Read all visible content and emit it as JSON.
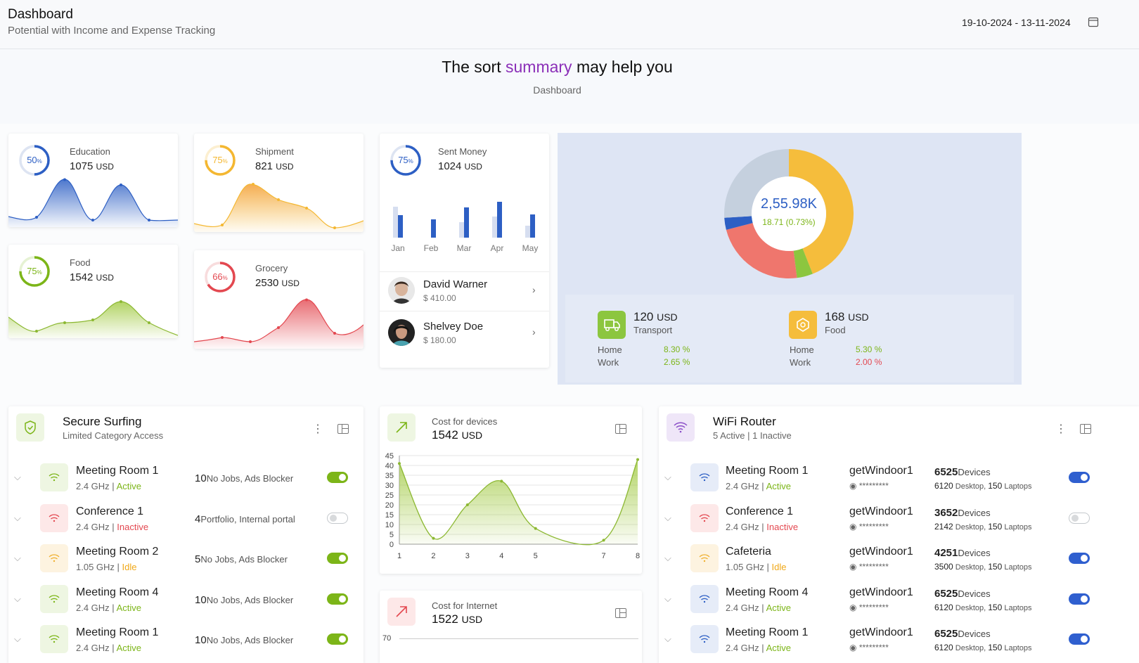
{
  "header": {
    "title": "Dashboard",
    "subtitle": "Potential with Income and Expense Tracking",
    "date_range": "19-10-2024 - 13-11-2024"
  },
  "hero": {
    "title_pre": "The sort ",
    "title_highlight": "summary",
    "title_post": " may help you",
    "breadcrumb": "Dashboard"
  },
  "kpis": [
    {
      "label": "Education",
      "value": "1075",
      "unit": "USD",
      "percent": "50",
      "color": "#2d5fc4"
    },
    {
      "label": "Shipment",
      "value": "821",
      "unit": "USD",
      "percent": "75",
      "color": "#f4b731"
    },
    {
      "label": "Food",
      "value": "1542",
      "unit": "USD",
      "percent": "75",
      "color": "#7cb518"
    },
    {
      "label": "Grocery",
      "value": "2530",
      "unit": "USD",
      "percent": "66",
      "color": "#e34850"
    }
  ],
  "sent_money": {
    "label": "Sent Money",
    "value": "1024",
    "unit": "USD",
    "percent": "75",
    "months": [
      "Jan",
      "Feb",
      "Mar",
      "Apr",
      "May"
    ],
    "prev": [
      44,
      0,
      22,
      30,
      17
    ],
    "curr": [
      32,
      26,
      43,
      51,
      33
    ],
    "contacts": [
      {
        "name": "David Warner",
        "amount": "$ 410.00"
      },
      {
        "name": "Shelvey Doe",
        "amount": "$ 180.00"
      }
    ]
  },
  "donut": {
    "total": "2,55.98K",
    "change": "18.71 (0.73%)",
    "segments": [
      {
        "value": 44,
        "color": "#f5bd3c"
      },
      {
        "value": 4,
        "color": "#8cc63f"
      },
      {
        "value": 23,
        "color": "#ef766d"
      },
      {
        "value": 3,
        "color": "#2d5fc4"
      },
      {
        "value": 26,
        "color": "#c5d0de"
      }
    ],
    "transport": {
      "value": "120",
      "unit": "USD",
      "label": "Transport",
      "home_label": "Home",
      "home": "8.30 %",
      "work_label": "Work",
      "work": "2.65 %"
    },
    "food": {
      "value": "168",
      "unit": "USD",
      "label": "Food",
      "home_label": "Home",
      "home": "5.30 %",
      "work_label": "Work",
      "work": "2.00 %"
    }
  },
  "secure": {
    "title": "Secure Surfing",
    "subtitle": "Limited Category Access",
    "rows": [
      {
        "name": "Meeting Room 1",
        "freq": "2.4 GHz",
        "status": "Active",
        "count": "10",
        "desc": "No Jobs, Ads Blocker",
        "on": true
      },
      {
        "name": "Conference 1",
        "freq": "2.4 GHz",
        "status": "Inactive",
        "count": "4",
        "desc": "Portfolio, Internal portal",
        "on": false
      },
      {
        "name": "Meeting Room 2",
        "freq": "1.05 GHz",
        "status": "Idle",
        "count": "5",
        "desc": "No Jobs, Ads Blocker",
        "on": true
      },
      {
        "name": "Meeting Room 4",
        "freq": "2.4 GHz",
        "status": "Active",
        "count": "10",
        "desc": "No Jobs, Ads Blocker",
        "on": true
      },
      {
        "name": "Meeting Room 1",
        "freq": "2.4 GHz",
        "status": "Active",
        "count": "10",
        "desc": "No Jobs, Ads Blocker",
        "on": true
      }
    ]
  },
  "cost_devices": {
    "label": "Cost for devices",
    "value": "1542",
    "unit": "USD",
    "chart_data": {
      "type": "area",
      "x": [
        1,
        2,
        3,
        4,
        5,
        7,
        8
      ],
      "y": [
        41,
        3,
        20,
        32,
        8,
        2,
        43
      ],
      "xlim": [
        1,
        8
      ],
      "ylim": [
        0,
        45
      ],
      "yticks": [
        0,
        5,
        10,
        15,
        20,
        25,
        30,
        35,
        40,
        45
      ],
      "xticks": [
        "1",
        "2",
        "3",
        "4",
        "5",
        "7",
        "8"
      ]
    }
  },
  "cost_internet": {
    "label": "Cost for Internet",
    "value": "1522",
    "unit": "USD",
    "ytop": "70"
  },
  "wifi": {
    "title": "WiFi Router",
    "subtitle": "5 Active | 1 Inactive",
    "rows": [
      {
        "name": "Meeting Room 1",
        "freq": "2.4 GHz",
        "status": "Active",
        "ssid": "getWindoor1",
        "pass": "*********",
        "devices": "6525",
        "devices_label": "Devices",
        "desktop": "6120",
        "laptops": "150",
        "on": true
      },
      {
        "name": "Conference 1",
        "freq": "2.4 GHz",
        "status": "Inactive",
        "ssid": "getWindoor1",
        "pass": "*********",
        "devices": "3652",
        "devices_label": "Devices",
        "desktop": "2142",
        "laptops": "150",
        "on": false
      },
      {
        "name": "Cafeteria",
        "freq": "1.05 GHz",
        "status": "Idle",
        "ssid": "getWindoor1",
        "pass": "*********",
        "devices": "4251",
        "devices_label": "Devices",
        "desktop": "3500",
        "laptops": "150",
        "on": true
      },
      {
        "name": "Meeting Room 4",
        "freq": "2.4 GHz",
        "status": "Active",
        "ssid": "getWindoor1",
        "pass": "*********",
        "devices": "6525",
        "devices_label": "Devices",
        "desktop": "6120",
        "laptops": "150",
        "on": true
      },
      {
        "name": "Meeting Room 1",
        "freq": "2.4 GHz",
        "status": "Active",
        "ssid": "getWindoor1",
        "pass": "*********",
        "devices": "6525",
        "devices_label": "Devices",
        "desktop": "6120",
        "laptops": "150",
        "on": true
      }
    ],
    "desktop_label": "Desktop",
    "laptops_label": "Laptops"
  }
}
